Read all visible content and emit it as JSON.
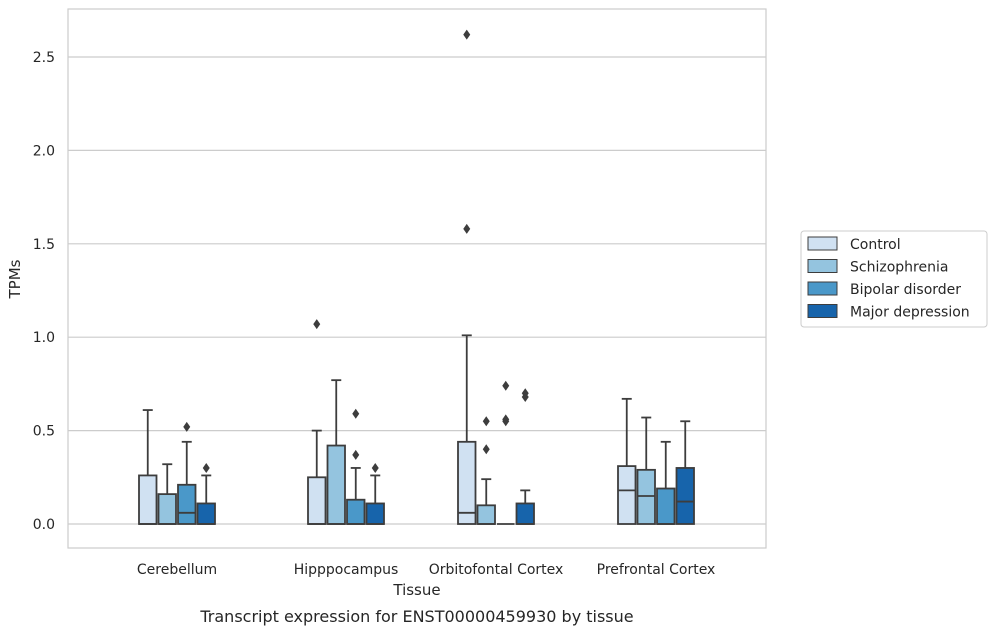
{
  "chart_data": {
    "type": "boxplot",
    "title": "",
    "caption": "Transcript expression for ENST00000459930 by tissue",
    "xlabel": "Tissue",
    "ylabel": "TPMs",
    "ylim": [
      -0.13,
      2.75
    ],
    "yticks": [
      0.0,
      0.5,
      1.0,
      1.5,
      2.0,
      2.5
    ],
    "ytick_labels": [
      "0.0",
      "0.5",
      "1.0",
      "1.5",
      "2.0",
      "2.5"
    ],
    "grid": "horizontal",
    "legend_position": "right",
    "categories": [
      "Cerebellum",
      "Hipppocampus",
      "Orbitofontal Cortex",
      "Prefrontal Cortex"
    ],
    "series": [
      {
        "name": "Control",
        "color": "#d0e1f2",
        "boxes": [
          {
            "q1": 0.0,
            "median": 0.0,
            "q3": 0.26,
            "whisker_low": 0.0,
            "whisker_high": 0.61,
            "outliers": []
          },
          {
            "q1": 0.0,
            "median": 0.0,
            "q3": 0.25,
            "whisker_low": 0.0,
            "whisker_high": 0.5,
            "outliers": [
              1.07
            ]
          },
          {
            "q1": 0.0,
            "median": 0.06,
            "q3": 0.44,
            "whisker_low": 0.0,
            "whisker_high": 1.01,
            "outliers": [
              1.58,
              2.62
            ]
          },
          {
            "q1": 0.0,
            "median": 0.18,
            "q3": 0.31,
            "whisker_low": 0.0,
            "whisker_high": 0.67,
            "outliers": []
          }
        ]
      },
      {
        "name": "Schizophrenia",
        "color": "#94c4df",
        "boxes": [
          {
            "q1": 0.0,
            "median": 0.0,
            "q3": 0.16,
            "whisker_low": 0.0,
            "whisker_high": 0.32,
            "outliers": []
          },
          {
            "q1": 0.0,
            "median": 0.0,
            "q3": 0.42,
            "whisker_low": 0.0,
            "whisker_high": 0.77,
            "outliers": []
          },
          {
            "q1": 0.0,
            "median": 0.0,
            "q3": 0.1,
            "whisker_low": 0.0,
            "whisker_high": 0.24,
            "outliers": [
              0.4,
              0.55
            ]
          },
          {
            "q1": 0.0,
            "median": 0.15,
            "q3": 0.29,
            "whisker_low": 0.0,
            "whisker_high": 0.57,
            "outliers": []
          }
        ]
      },
      {
        "name": "Bipolar disorder",
        "color": "#4a98c9",
        "boxes": [
          {
            "q1": 0.0,
            "median": 0.06,
            "q3": 0.21,
            "whisker_low": 0.0,
            "whisker_high": 0.44,
            "outliers": [
              0.52
            ]
          },
          {
            "q1": 0.0,
            "median": 0.0,
            "q3": 0.13,
            "whisker_low": 0.0,
            "whisker_high": 0.3,
            "outliers": [
              0.37,
              0.59
            ]
          },
          {
            "q1": 0.0,
            "median": 0.0,
            "q3": 0.0,
            "whisker_low": 0.0,
            "whisker_high": 0.0,
            "outliers": [
              0.55,
              0.56,
              0.74
            ]
          },
          {
            "q1": 0.0,
            "median": 0.0,
            "q3": 0.19,
            "whisker_low": 0.0,
            "whisker_high": 0.44,
            "outliers": []
          }
        ]
      },
      {
        "name": "Major depression",
        "color": "#1764ab",
        "boxes": [
          {
            "q1": 0.0,
            "median": 0.0,
            "q3": 0.11,
            "whisker_low": 0.0,
            "whisker_high": 0.26,
            "outliers": [
              0.3
            ]
          },
          {
            "q1": 0.0,
            "median": 0.0,
            "q3": 0.11,
            "whisker_low": 0.0,
            "whisker_high": 0.26,
            "outliers": [
              0.3
            ]
          },
          {
            "q1": 0.0,
            "median": 0.0,
            "q3": 0.11,
            "whisker_low": 0.0,
            "whisker_high": 0.18,
            "outliers": [
              0.68,
              0.7
            ]
          },
          {
            "q1": 0.0,
            "median": 0.12,
            "q3": 0.3,
            "whisker_low": 0.0,
            "whisker_high": 0.55,
            "outliers": []
          }
        ]
      }
    ]
  }
}
